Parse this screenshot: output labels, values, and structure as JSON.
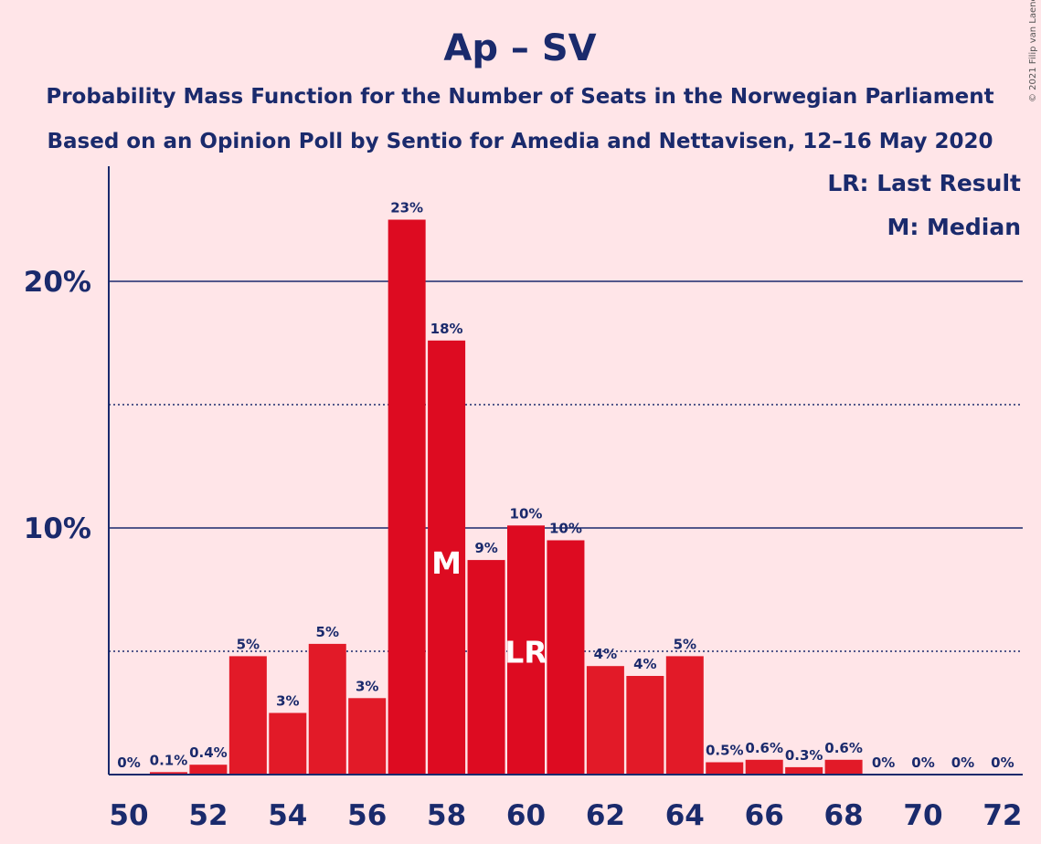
{
  "title": "Ap – SV",
  "subtitle_line1": "Probability Mass Function for the Number of Seats in the Norwegian Parliament",
  "subtitle_line2": "Based on an Opinion Poll by Sentio for Amedia and Nettavisen, 12–16 May 2020",
  "copyright": "© 2021 Filip van Laenen",
  "legend": {
    "last_result": "LR: Last Result",
    "median": "M: Median"
  },
  "colors": {
    "background": "#FFE5E8",
    "text": "#1A2A6C",
    "bar_dark": "#DD0B21",
    "bar_light": "#E21A28",
    "marker_text": "#FFFFFF"
  },
  "chart_data": {
    "type": "bar",
    "x": [
      50,
      51,
      52,
      53,
      54,
      55,
      56,
      57,
      58,
      59,
      60,
      61,
      62,
      63,
      64,
      65,
      66,
      67,
      68,
      69,
      70,
      71,
      72
    ],
    "values": [
      0,
      0.1,
      0.4,
      4.8,
      2.5,
      5.3,
      3.1,
      22.5,
      17.6,
      8.7,
      10.1,
      9.5,
      4.4,
      4.0,
      4.8,
      0.5,
      0.6,
      0.3,
      0.6,
      0,
      0,
      0,
      0
    ],
    "data_labels": [
      "0%",
      "0.1%",
      "0.4%",
      "5%",
      "3%",
      "5%",
      "3%",
      "23%",
      "18%",
      "9%",
      "10%",
      "10%",
      "4%",
      "4%",
      "5%",
      "0.5%",
      "0.6%",
      "0.3%",
      "0.6%",
      "0%",
      "0%",
      "0%",
      "0%"
    ],
    "x_tick_labels": [
      "50",
      "52",
      "54",
      "56",
      "58",
      "60",
      "62",
      "64",
      "66",
      "68",
      "70",
      "72"
    ],
    "y_tick_labels": [
      "10%",
      "20%"
    ],
    "y_solid_gridlines": [
      10,
      20
    ],
    "y_dotted_gridlines": [
      5,
      15
    ],
    "ylim": [
      0,
      24.5
    ],
    "median_seat": 58,
    "median_marker": "M",
    "last_result_seat": 60,
    "last_result_marker": "LR",
    "legend_position": "top-right"
  }
}
